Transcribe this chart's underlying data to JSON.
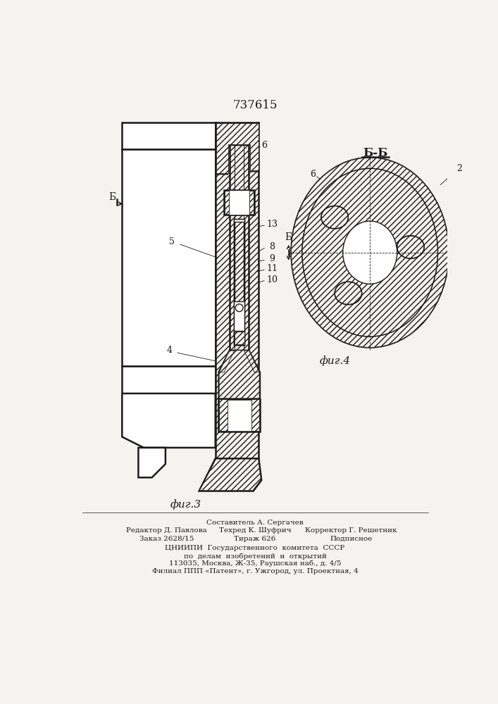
{
  "patent_number": "737615",
  "fig3_label": "фиг.3",
  "fig4_label": "фиг.4",
  "section_label": "Б-Б",
  "bg": "#f5f3ef",
  "lc": "#1a1a1a",
  "footer": [
    [
      "Составитель А. Сергачев",
      353,
      808
    ],
    [
      "Редактор Д. Павлова",
      190,
      823
    ],
    [
      "Техред К. Шуфрич",
      353,
      823
    ],
    [
      "Корректор Г. Решетник",
      530,
      823
    ],
    [
      "Заказ 2628/15",
      190,
      838
    ],
    [
      "Тираж 626",
      353,
      838
    ],
    [
      "Подписное",
      530,
      838
    ],
    [
      "ЦНИИПИ  Государственного  комитета  СССР",
      353,
      855
    ],
    [
      "по  делам  изобретений  и  открытий",
      353,
      870
    ],
    [
      "113035, Москва, Ж-35, Раушская наб., д. 4/5",
      353,
      884
    ],
    [
      "Филиал ППП «Патент», г. Ужгород, ул. Проектная, 4",
      353,
      898
    ]
  ]
}
